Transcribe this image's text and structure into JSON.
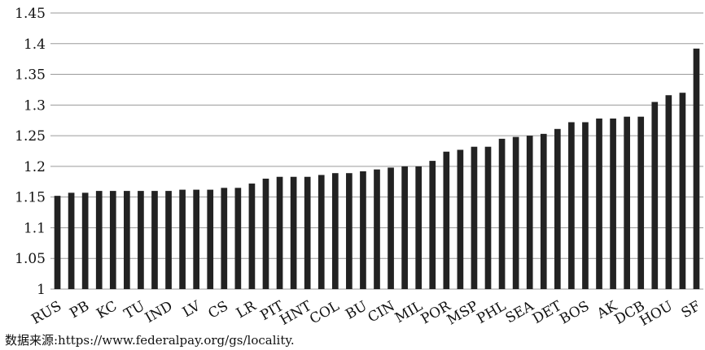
{
  "colors": {
    "bar": "#222222",
    "grid": "#9a9a9a",
    "text": "#111111"
  },
  "chart_data": {
    "type": "bar",
    "title": "",
    "xlabel": "",
    "ylabel": "",
    "ylim": [
      1,
      1.45
    ],
    "yticks": [
      1,
      1.05,
      1.1,
      1.15,
      1.2,
      1.25,
      1.3,
      1.35,
      1.4,
      1.45
    ],
    "grid": "horizontal",
    "legend": "none",
    "categories": [
      "RUS",
      "",
      "PB",
      "",
      "KC",
      "",
      "TU",
      "",
      "IND",
      "",
      "LV",
      "",
      "CS",
      "",
      "LR",
      "",
      "PIT",
      "",
      "HNT",
      "",
      "COL",
      "",
      "BU",
      "",
      "CIN",
      "",
      "MIL",
      "",
      "POR",
      "",
      "MSP",
      "",
      "PHL",
      "",
      "SEA",
      "",
      "DET",
      "",
      "BOS",
      "",
      "AK",
      "",
      "DCB",
      "",
      "HOU",
      "",
      "SF"
    ],
    "values": [
      1.152,
      1.157,
      1.157,
      1.16,
      1.16,
      1.16,
      1.16,
      1.16,
      1.16,
      1.162,
      1.162,
      1.162,
      1.165,
      1.165,
      1.172,
      1.18,
      1.183,
      1.183,
      1.183,
      1.186,
      1.189,
      1.189,
      1.192,
      1.195,
      1.198,
      1.2,
      1.2,
      1.209,
      1.224,
      1.227,
      1.232,
      1.232,
      1.245,
      1.248,
      1.25,
      1.253,
      1.261,
      1.272,
      1.272,
      1.278,
      1.278,
      1.281,
      1.281,
      1.305,
      1.316,
      1.32,
      1.392
    ]
  },
  "source": "数据来源:https://www.federalpay.org/gs/locality."
}
